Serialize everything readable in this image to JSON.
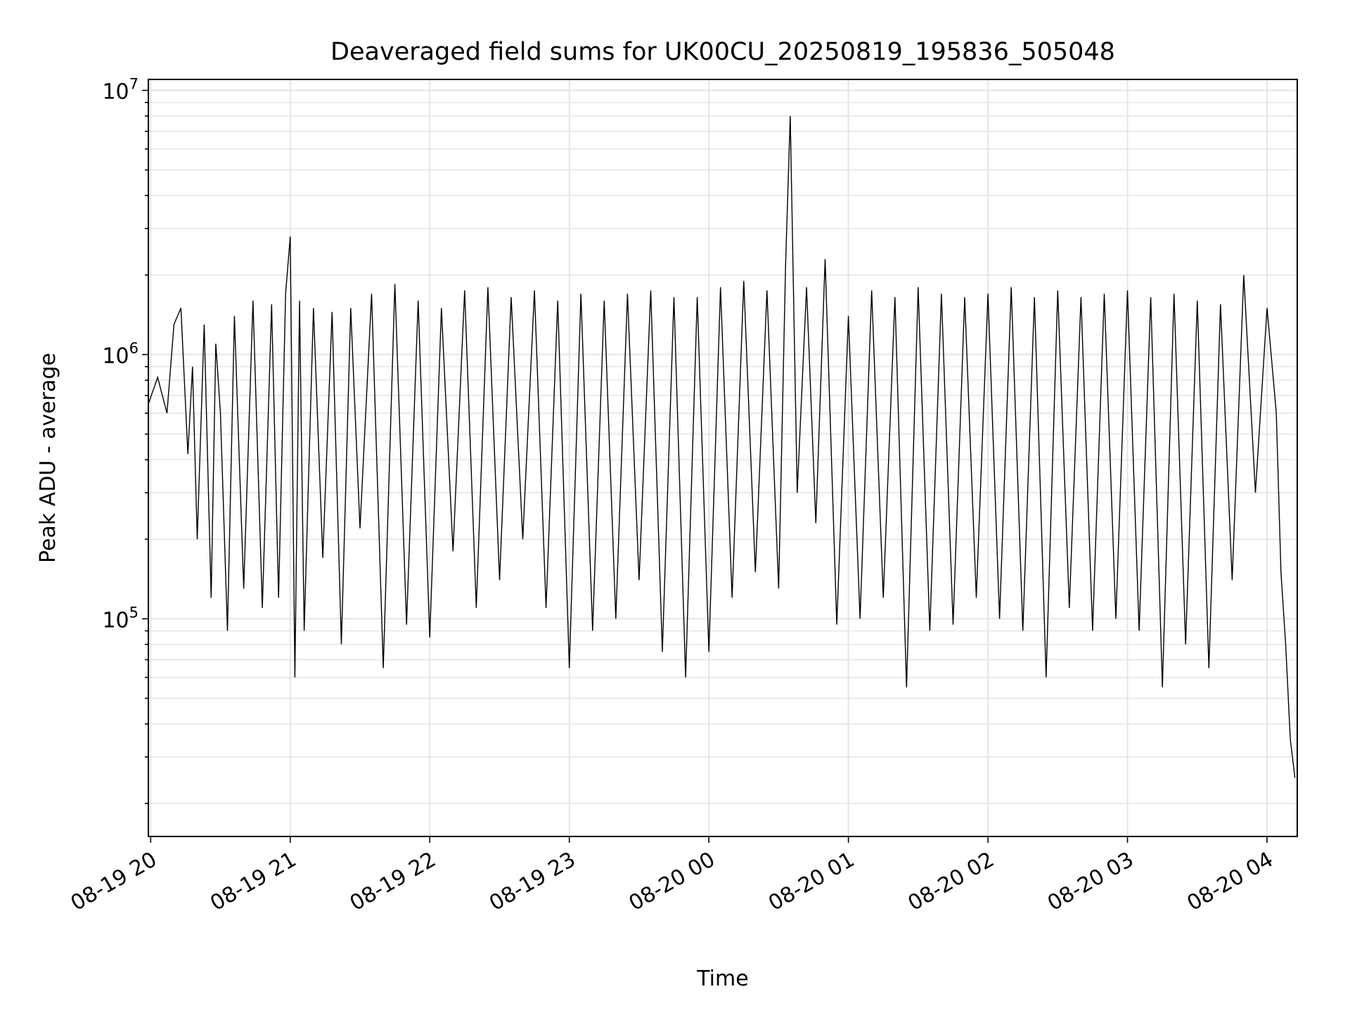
{
  "chart_data": {
    "type": "line",
    "title": "Deaveraged field sums for UK00CU_20250819_195836_505048",
    "xlabel": "Time",
    "ylabel": "Peak ADU - average",
    "yscale": "log",
    "ylim": [
      15000,
      11000000
    ],
    "xlim": [
      "2025-08-19 19:59",
      "2025-08-20 04:13"
    ],
    "x_ticks": [
      {
        "t": "2025-08-19 20:00",
        "label": "08-19 20"
      },
      {
        "t": "2025-08-19 21:00",
        "label": "08-19 21"
      },
      {
        "t": "2025-08-19 22:00",
        "label": "08-19 22"
      },
      {
        "t": "2025-08-19 23:00",
        "label": "08-19 23"
      },
      {
        "t": "2025-08-20 00:00",
        "label": "08-20 00"
      },
      {
        "t": "2025-08-20 01:00",
        "label": "08-20 01"
      },
      {
        "t": "2025-08-20 02:00",
        "label": "08-20 02"
      },
      {
        "t": "2025-08-20 03:00",
        "label": "08-20 03"
      },
      {
        "t": "2025-08-20 04:00",
        "label": "08-20 04"
      }
    ],
    "y_ticks": [
      {
        "value": 100000,
        "base": "10",
        "exp": "5"
      },
      {
        "value": 1000000,
        "base": "10",
        "exp": "6"
      },
      {
        "value": 10000000,
        "base": "10",
        "exp": "7"
      }
    ],
    "grid": true,
    "line_color": "#000000",
    "grid_color": "#e5e5e5",
    "series": [
      {
        "x": [
          "2025-08-19 19:59",
          "2025-08-19 20:03",
          "2025-08-19 20:07",
          "2025-08-19 20:10",
          "2025-08-19 20:13",
          "2025-08-19 20:16",
          "2025-08-19 20:18",
          "2025-08-19 20:20",
          "2025-08-19 20:23",
          "2025-08-19 20:26",
          "2025-08-19 20:28",
          "2025-08-19 20:30",
          "2025-08-19 20:33",
          "2025-08-19 20:36",
          "2025-08-19 20:40",
          "2025-08-19 20:44",
          "2025-08-19 20:48",
          "2025-08-19 20:52",
          "2025-08-19 20:55",
          "2025-08-19 20:58",
          "2025-08-19 21:00",
          "2025-08-19 21:02",
          "2025-08-19 21:04",
          "2025-08-19 21:06",
          "2025-08-19 21:10",
          "2025-08-19 21:14",
          "2025-08-19 21:18",
          "2025-08-19 21:22",
          "2025-08-19 21:26",
          "2025-08-19 21:30",
          "2025-08-19 21:35",
          "2025-08-19 21:40",
          "2025-08-19 21:45",
          "2025-08-19 21:50",
          "2025-08-19 21:55",
          "2025-08-19 22:00",
          "2025-08-19 22:05",
          "2025-08-19 22:10",
          "2025-08-19 22:15",
          "2025-08-19 22:20",
          "2025-08-19 22:25",
          "2025-08-19 22:30",
          "2025-08-19 22:35",
          "2025-08-19 22:40",
          "2025-08-19 22:45",
          "2025-08-19 22:50",
          "2025-08-19 22:55",
          "2025-08-19 23:00",
          "2025-08-19 23:05",
          "2025-08-19 23:10",
          "2025-08-19 23:15",
          "2025-08-19 23:20",
          "2025-08-19 23:25",
          "2025-08-19 23:30",
          "2025-08-19 23:35",
          "2025-08-19 23:40",
          "2025-08-19 23:45",
          "2025-08-19 23:50",
          "2025-08-19 23:55",
          "2025-08-20 00:00",
          "2025-08-20 00:05",
          "2025-08-20 00:10",
          "2025-08-20 00:15",
          "2025-08-20 00:20",
          "2025-08-20 00:25",
          "2025-08-20 00:30",
          "2025-08-20 00:33",
          "2025-08-20 00:35",
          "2025-08-20 00:38",
          "2025-08-20 00:42",
          "2025-08-20 00:46",
          "2025-08-20 00:50",
          "2025-08-20 00:55",
          "2025-08-20 01:00",
          "2025-08-20 01:05",
          "2025-08-20 01:10",
          "2025-08-20 01:15",
          "2025-08-20 01:20",
          "2025-08-20 01:25",
          "2025-08-20 01:30",
          "2025-08-20 01:35",
          "2025-08-20 01:40",
          "2025-08-20 01:45",
          "2025-08-20 01:50",
          "2025-08-20 01:55",
          "2025-08-20 02:00",
          "2025-08-20 02:05",
          "2025-08-20 02:10",
          "2025-08-20 02:15",
          "2025-08-20 02:20",
          "2025-08-20 02:25",
          "2025-08-20 02:30",
          "2025-08-20 02:35",
          "2025-08-20 02:40",
          "2025-08-20 02:45",
          "2025-08-20 02:50",
          "2025-08-20 02:55",
          "2025-08-20 03:00",
          "2025-08-20 03:05",
          "2025-08-20 03:10",
          "2025-08-20 03:15",
          "2025-08-20 03:20",
          "2025-08-20 03:25",
          "2025-08-20 03:30",
          "2025-08-20 03:35",
          "2025-08-20 03:40",
          "2025-08-20 03:45",
          "2025-08-20 03:50",
          "2025-08-20 03:55",
          "2025-08-20 04:00",
          "2025-08-20 04:02",
          "2025-08-20 04:04",
          "2025-08-20 04:06",
          "2025-08-20 04:08",
          "2025-08-20 04:10",
          "2025-08-20 04:12"
        ],
        "y": [
          650000,
          820000,
          600000,
          1300000,
          1500000,
          420000,
          900000,
          200000,
          1300000,
          120000,
          1100000,
          600000,
          90000,
          1400000,
          130000,
          1600000,
          110000,
          1550000,
          120000,
          1700000,
          2800000,
          60000,
          1600000,
          90000,
          1500000,
          170000,
          1450000,
          80000,
          1500000,
          220000,
          1700000,
          65000,
          1850000,
          95000,
          1600000,
          85000,
          1500000,
          180000,
          1750000,
          110000,
          1800000,
          140000,
          1650000,
          200000,
          1750000,
          110000,
          1600000,
          65000,
          1700000,
          90000,
          1600000,
          100000,
          1700000,
          140000,
          1750000,
          75000,
          1650000,
          60000,
          1650000,
          75000,
          1800000,
          120000,
          1900000,
          150000,
          1750000,
          130000,
          2200000,
          8000000,
          300000,
          1800000,
          230000,
          2300000,
          95000,
          1400000,
          100000,
          1750000,
          120000,
          1650000,
          55000,
          1800000,
          90000,
          1700000,
          95000,
          1650000,
          120000,
          1700000,
          100000,
          1800000,
          90000,
          1650000,
          60000,
          1750000,
          110000,
          1650000,
          90000,
          1700000,
          100000,
          1750000,
          90000,
          1650000,
          55000,
          1700000,
          80000,
          1600000,
          65000,
          1550000,
          140000,
          2000000,
          300000,
          1500000,
          950000,
          600000,
          150000,
          80000,
          35000,
          25000
        ]
      }
    ]
  }
}
